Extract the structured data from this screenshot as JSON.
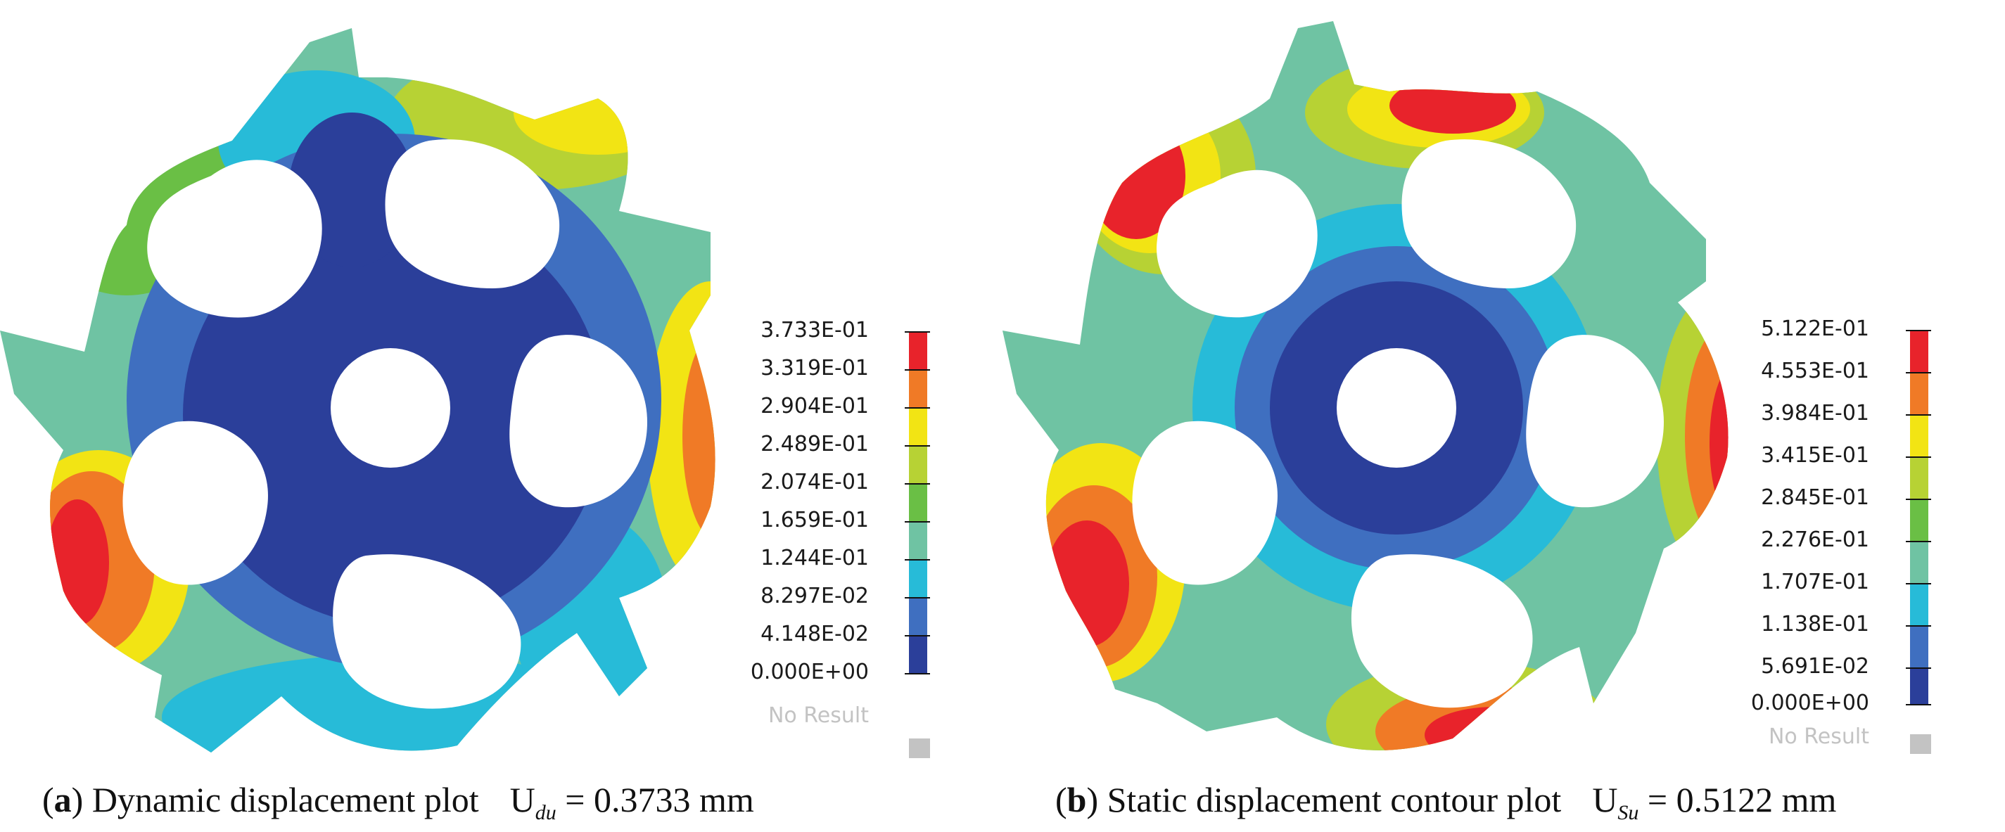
{
  "colors": {
    "red": "#e8232b",
    "orange": "#f07a26",
    "yellow": "#f2e414",
    "yellow_green": "#b7d234",
    "green": "#6abf45",
    "teal": "#6fc3a3",
    "cyan": "#27bbd8",
    "mid_blue": "#3f6fc0",
    "dark_blue": "#2b3f9a",
    "no_result_gray": "#c3c3c3"
  },
  "panels": [
    {
      "id": "a",
      "legend_values": [
        "3.733E-01",
        "3.319E-01",
        "2.904E-01",
        "2.489E-01",
        "2.074E-01",
        "1.659E-01",
        "1.244E-01",
        "8.297E-02",
        "4.148E-02",
        "0.000E+00"
      ],
      "no_result_label": "No Result",
      "caption": {
        "letter": "a",
        "title": "Dynamic displacement plot",
        "symbol": "U",
        "subscript": "du",
        "value": "= 0.3733 mm"
      }
    },
    {
      "id": "b",
      "legend_values": [
        "5.122E-01",
        "4.553E-01",
        "3.984E-01",
        "3.415E-01",
        "2.845E-01",
        "2.276E-01",
        "1.707E-01",
        "1.138E-01",
        "5.691E-02",
        "0.000E+00"
      ],
      "no_result_label": "No Result",
      "caption": {
        "letter": "b",
        "title": "Static displacement contour plot",
        "symbol": "U",
        "subscript": "Su",
        "value": "= 0.5122 mm"
      }
    }
  ]
}
